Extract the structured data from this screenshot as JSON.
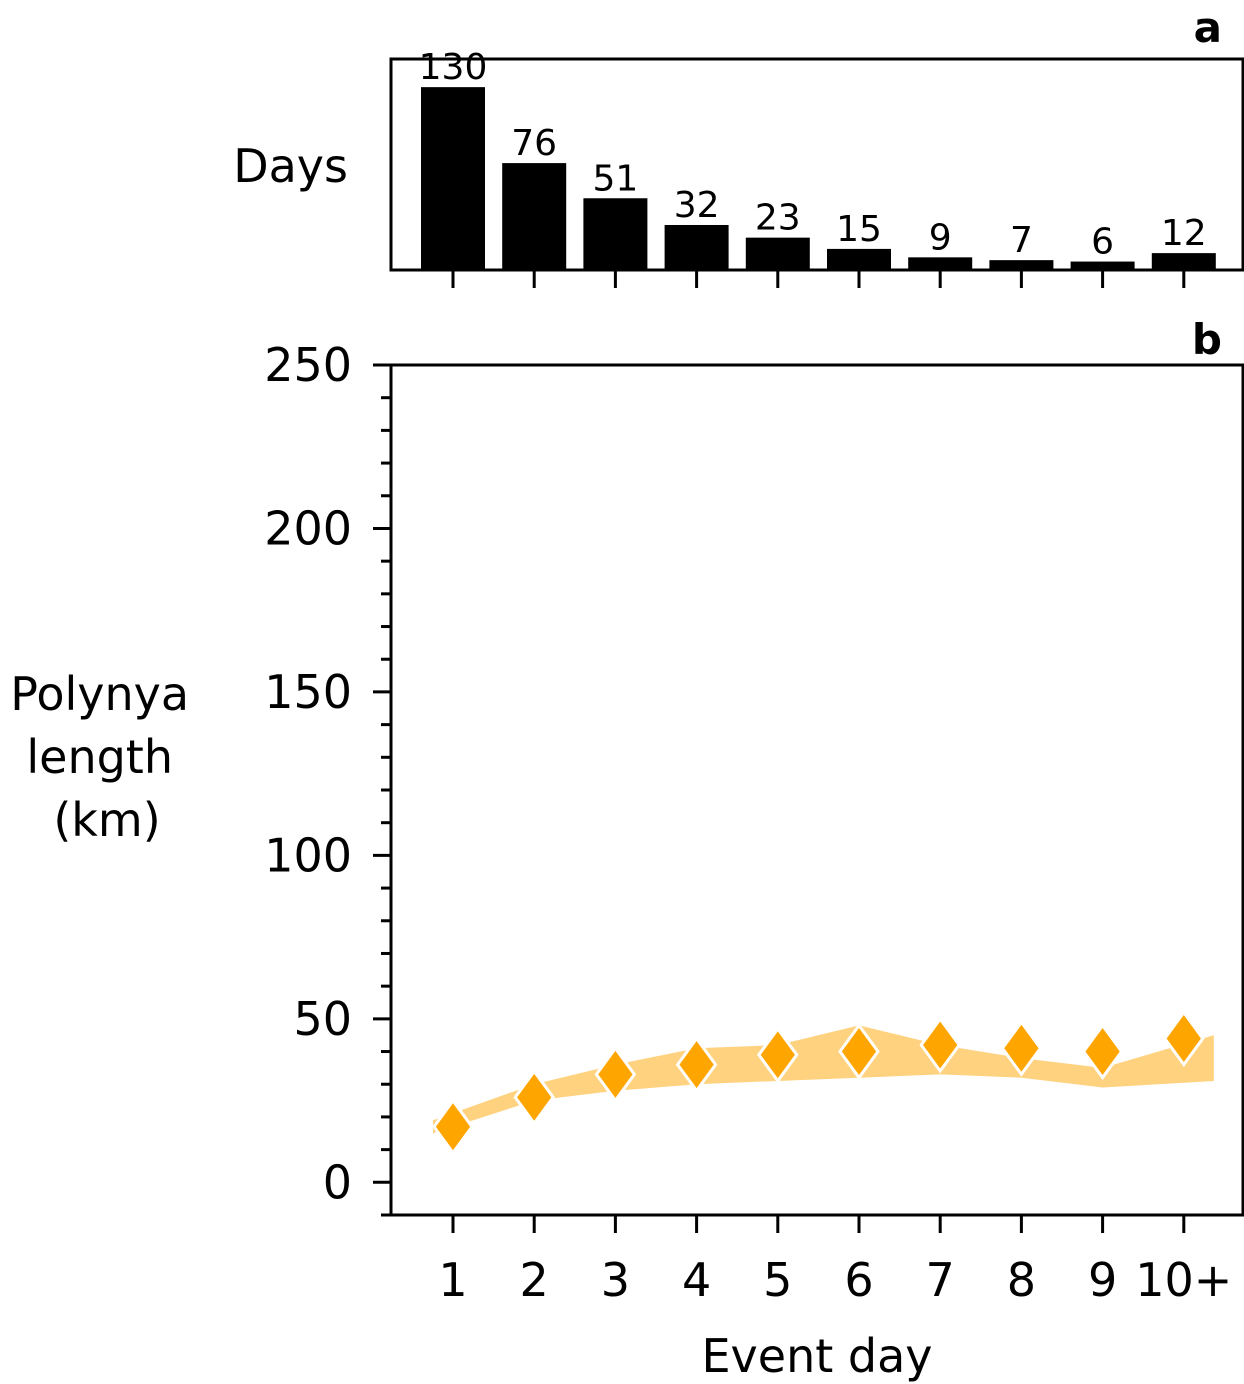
{
  "chart_data": [
    {
      "panel": "a",
      "type": "bar",
      "ylabel": "Days",
      "categories": [
        "1",
        "2",
        "3",
        "4",
        "5",
        "6",
        "7",
        "8",
        "9",
        "10+"
      ],
      "values": [
        130,
        76,
        51,
        32,
        23,
        15,
        9,
        7,
        6,
        12
      ],
      "data_labels": [
        "130",
        "76",
        "51",
        "32",
        "23",
        "15",
        "9",
        "7",
        "6",
        "12"
      ],
      "ylim": [
        0,
        150
      ],
      "bar_color": "#000000"
    },
    {
      "panel": "b",
      "type": "line",
      "xlabel": "Event day",
      "ylabel": [
        "Polynya",
        "length",
        "(km)"
      ],
      "categories": [
        "1",
        "2",
        "3",
        "4",
        "5",
        "6",
        "7",
        "8",
        "9",
        "10+"
      ],
      "ylim": [
        -10,
        250
      ],
      "yticks": [
        0,
        50,
        100,
        150,
        200,
        250
      ],
      "ytick_labels": [
        "0",
        "50",
        "100",
        "150",
        "200",
        "250"
      ],
      "series": [
        {
          "marker": "diamond",
          "color": "#FFA500",
          "values": [
            17,
            26,
            33,
            36,
            39,
            40,
            42,
            41,
            40,
            44
          ],
          "band_low": [
            15,
            25,
            28,
            30,
            31,
            32,
            33,
            32,
            29,
            31
          ],
          "band_high": [
            19,
            30,
            36,
            41,
            42,
            48,
            42,
            38,
            35,
            45
          ],
          "band_color": "#FFD27F"
        }
      ]
    }
  ]
}
